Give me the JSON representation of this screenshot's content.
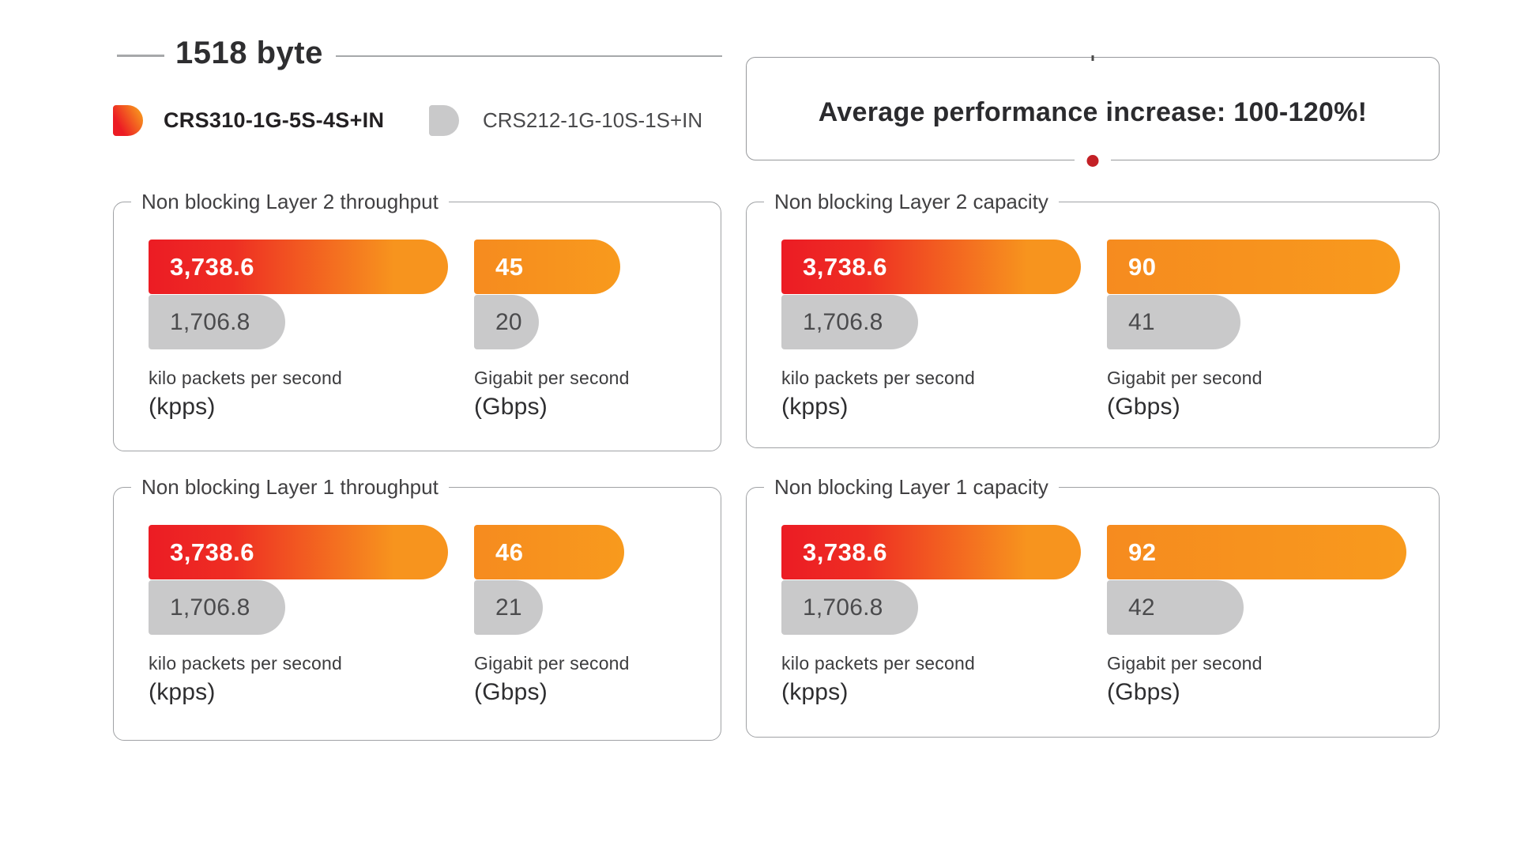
{
  "header": {
    "title": "1518 byte",
    "callout": "Average performance increase: 100-120%!"
  },
  "legend": {
    "items": [
      {
        "label": "CRS310-1G-5S-4S+IN",
        "swatch": "red-orange-gradient"
      },
      {
        "label": "CRS212-1G-10S-1S+IN",
        "swatch": "gray"
      }
    ]
  },
  "colors": {
    "brand_red": "#ec1c24",
    "brand_orange": "#f7941e",
    "comparison_gray": "#c9c9ca",
    "text_dark": "#2e2e30",
    "text_gray": "#4b4b4d",
    "rule_gray": "#a6a8aa",
    "dot_red": "#c32026"
  },
  "chart_data": {
    "type": "bar",
    "title": "1518 byte",
    "annotation": "Average performance increase: 100-120%!",
    "legend_position": "top-left",
    "grid": false,
    "series_names": [
      "CRS310-1G-5S-4S+IN",
      "CRS212-1G-10S-1S+IN"
    ],
    "panels": [
      {
        "title": "Non blocking Layer 2 throughput",
        "groups": [
          {
            "unit_name": "kilo packets per second",
            "unit_abbr": "(kpps)",
            "values": [
              3738.6,
              1706.8
            ],
            "value_labels": [
              "3,738.6",
              "1,706.8"
            ],
            "axis_max": 3738.6
          },
          {
            "unit_name": "Gigabit per second",
            "unit_abbr": "(Gbps)",
            "values": [
              45,
              20
            ],
            "value_labels": [
              "45",
              "20"
            ],
            "axis_max": 92
          }
        ]
      },
      {
        "title": "Non blocking Layer 2 capacity",
        "groups": [
          {
            "unit_name": "kilo packets per second",
            "unit_abbr": "(kpps)",
            "values": [
              3738.6,
              1706.8
            ],
            "value_labels": [
              "3,738.6",
              "1,706.8"
            ],
            "axis_max": 3738.6
          },
          {
            "unit_name": "Gigabit per second",
            "unit_abbr": "(Gbps)",
            "values": [
              90,
              41
            ],
            "value_labels": [
              "90",
              "41"
            ],
            "axis_max": 92
          }
        ]
      },
      {
        "title": "Non blocking Layer 1 throughput",
        "groups": [
          {
            "unit_name": "kilo packets per second",
            "unit_abbr": "(kpps)",
            "values": [
              3738.6,
              1706.8
            ],
            "value_labels": [
              "3,738.6",
              "1,706.8"
            ],
            "axis_max": 3738.6
          },
          {
            "unit_name": "Gigabit per second",
            "unit_abbr": "(Gbps)",
            "values": [
              46,
              21
            ],
            "value_labels": [
              "46",
              "21"
            ],
            "axis_max": 92
          }
        ]
      },
      {
        "title": "Non blocking Layer 1 capacity",
        "groups": [
          {
            "unit_name": "kilo packets per second",
            "unit_abbr": "(kpps)",
            "values": [
              3738.6,
              1706.8
            ],
            "value_labels": [
              "3,738.6",
              "1,706.8"
            ],
            "axis_max": 3738.6
          },
          {
            "unit_name": "Gigabit per second",
            "unit_abbr": "(Gbps)",
            "values": [
              92,
              42
            ],
            "value_labels": [
              "92",
              "42"
            ],
            "axis_max": 92
          }
        ]
      }
    ]
  }
}
